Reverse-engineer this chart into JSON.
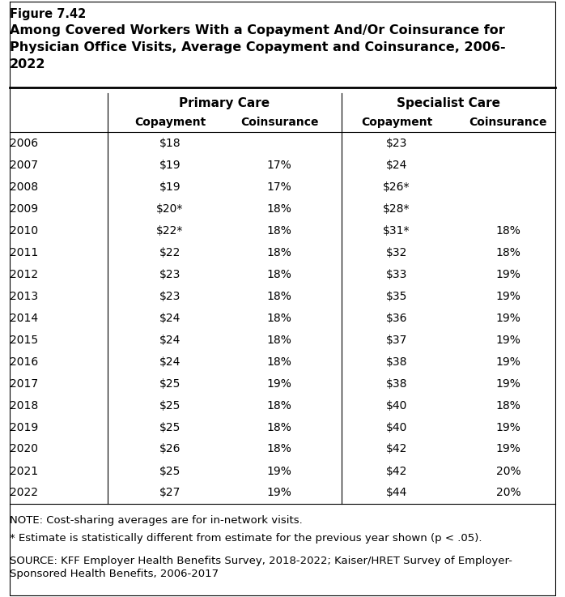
{
  "figure_label": "Figure 7.42",
  "title_line1": "Among Covered Workers With a Copayment And/Or Coinsurance for",
  "title_line2": "Physician Office Visits, Average Copayment and Coinsurance, 2006-",
  "title_line3": "2022",
  "years": [
    "2006",
    "2007",
    "2008",
    "2009",
    "2010",
    "2011",
    "2012",
    "2013",
    "2014",
    "2015",
    "2016",
    "2017",
    "2018",
    "2019",
    "2020",
    "2021",
    "2022"
  ],
  "pc_copay": [
    "$18",
    "$19",
    "$19",
    "$20*",
    "$22*",
    "$22",
    "$23",
    "$23",
    "$24",
    "$24",
    "$24",
    "$25",
    "$25",
    "$25",
    "$26",
    "$25",
    "$27"
  ],
  "pc_coins": [
    "",
    "17%",
    "17%",
    "18%",
    "18%",
    "18%",
    "18%",
    "18%",
    "18%",
    "18%",
    "18%",
    "19%",
    "18%",
    "18%",
    "18%",
    "19%",
    "19%"
  ],
  "sc_copay": [
    "$23",
    "$24",
    "$26*",
    "$28*",
    "$31*",
    "$32",
    "$33",
    "$35",
    "$36",
    "$37",
    "$38",
    "$38",
    "$40",
    "$40",
    "$42",
    "$42",
    "$44"
  ],
  "sc_coins": [
    "",
    "",
    "",
    "",
    "18%",
    "18%",
    "19%",
    "19%",
    "19%",
    "19%",
    "19%",
    "19%",
    "18%",
    "19%",
    "19%",
    "20%",
    "20%"
  ],
  "note1": "NOTE: Cost-sharing averages are for in-network visits.",
  "note2": "* Estimate is statistically different from estimate for the previous year shown (p < .05).",
  "source_line1": "SOURCE: KFF Employer Health Benefits Survey, 2018-2022; Kaiser/HRET Survey of Employer-",
  "source_line2": "Sponsored Health Benefits, 2006-2017",
  "bg_color": "#ffffff",
  "line_color": "#000000",
  "text_color": "#000000",
  "fig_label_fontsize": 10.5,
  "title_fontsize": 11.5,
  "table_fontsize": 10,
  "note_fontsize": 9.5,
  "header_group_fontsize": 11,
  "header_col_fontsize": 10
}
